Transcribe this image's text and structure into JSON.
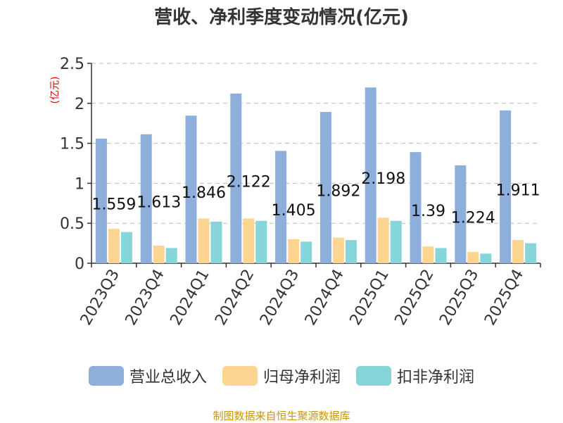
{
  "chart_data": {
    "type": "bar",
    "title": "营收、净利季度变动情况(亿元)",
    "ylabel": "(亿元)",
    "ylim": [
      0,
      2.5
    ],
    "yticks": [
      "0",
      "0.5",
      "1",
      "1.5",
      "2",
      "2.5"
    ],
    "grid": true,
    "legend_position": "bottom",
    "categories": [
      "2023Q3",
      "2023Q4",
      "2024Q1",
      "2024Q2",
      "2024Q3",
      "2024Q4",
      "2025Q1",
      "2025Q2",
      "2025Q3",
      "2025Q4"
    ],
    "series": [
      {
        "name": "营业总收入",
        "color": "#8eaedc",
        "values": [
          1.559,
          1.613,
          1.846,
          2.122,
          1.405,
          1.892,
          2.198,
          1.39,
          1.224,
          1.911
        ]
      },
      {
        "name": "归母净利润",
        "color": "#fdd592",
        "values": [
          0.43,
          0.22,
          0.56,
          0.56,
          0.3,
          0.32,
          0.57,
          0.21,
          0.14,
          0.29
        ]
      },
      {
        "name": "扣非净利润",
        "color": "#86d5d8",
        "values": [
          0.39,
          0.19,
          0.52,
          0.53,
          0.27,
          0.29,
          0.53,
          0.19,
          0.12,
          0.25
        ]
      }
    ],
    "data_labels": [
      "1.559",
      "1.613",
      "1.846",
      "2.122",
      "1.405",
      "1.892",
      "2.198",
      "1.39",
      "1.224",
      "1.911"
    ]
  },
  "source": "制图数据来自恒生聚源数据库"
}
